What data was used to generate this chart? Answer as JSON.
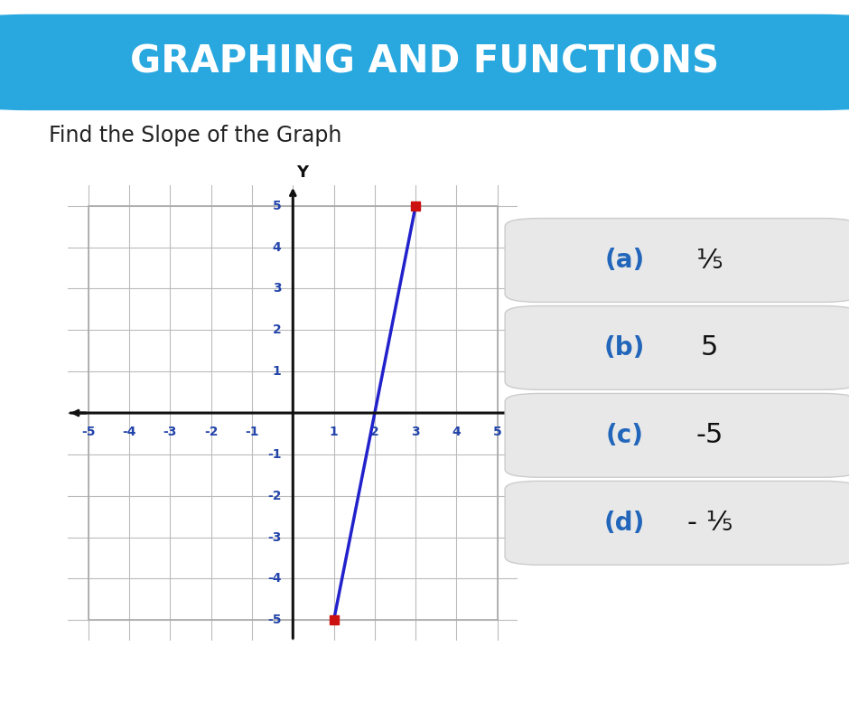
{
  "title": "GRAPHING AND FUNCTIONS",
  "subtitle": "Find the Slope of the Graph",
  "title_bg_color": "#29A8E0",
  "title_text_color": "#FFFFFF",
  "background_color": "#FFFFFF",
  "bottom_bar_color": "#29A8E0",
  "line_x": [
    1,
    3
  ],
  "line_y": [
    -5,
    5
  ],
  "line_color": "#2222CC",
  "point1": [
    1,
    -5
  ],
  "point2": [
    3,
    5
  ],
  "point_color": "#CC1111",
  "grid_color": "#BBBBBB",
  "axis_color": "#111111",
  "tick_color": "#2244AA",
  "answer_options": [
    {
      "label": "(a)",
      "text": "⅕"
    },
    {
      "label": "(b)",
      "text": "5"
    },
    {
      "label": "(c)",
      "text": "-5"
    },
    {
      "label": "(d)",
      "text": "- ⅕"
    }
  ],
  "answer_box_color": "#E8E8E8",
  "answer_text_color": "#111111",
  "answer_label_color": "#2266BB",
  "xlim": [
    -5.5,
    5.5
  ],
  "ylim": [
    -5.5,
    5.5
  ]
}
